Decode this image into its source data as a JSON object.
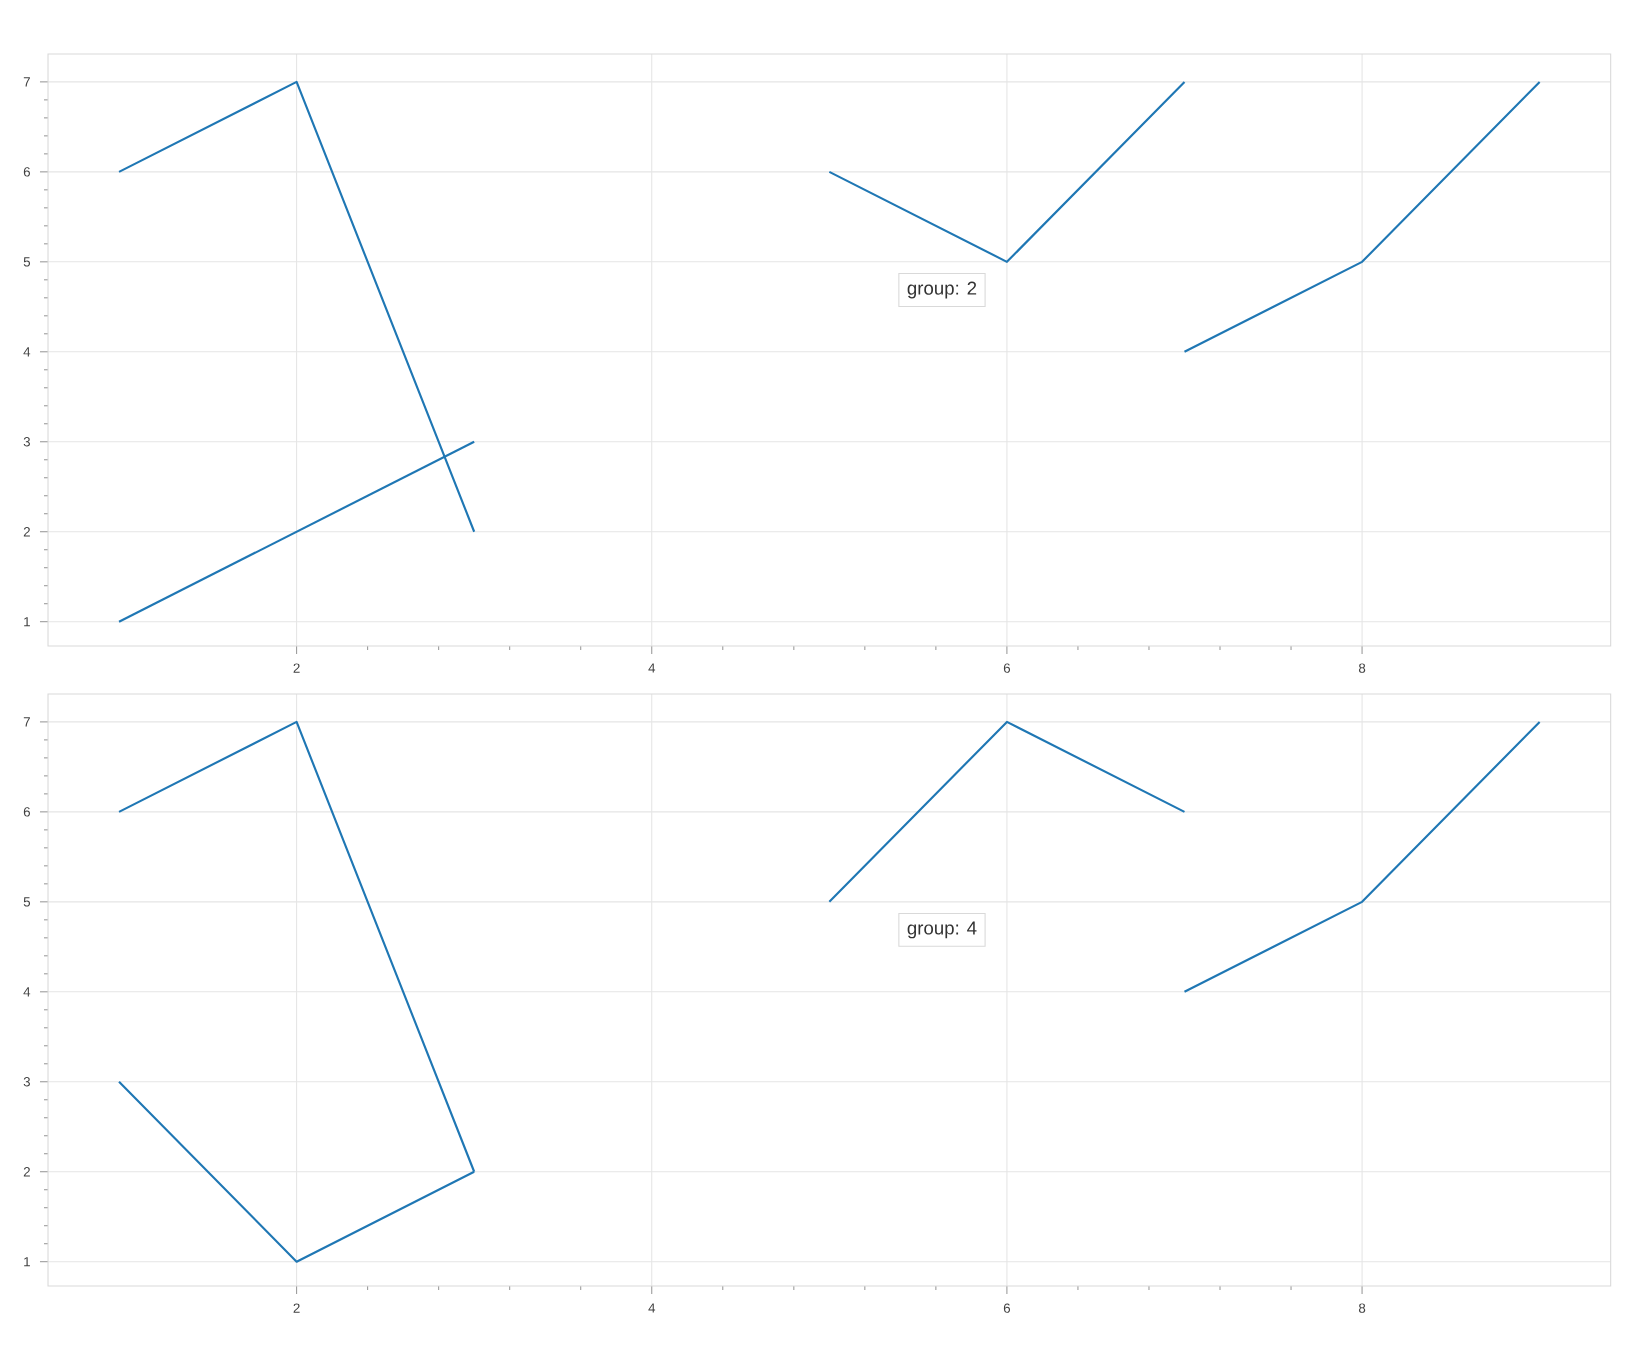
{
  "chart_data": [
    {
      "type": "line",
      "xlim": [
        0.6,
        9.4
      ],
      "ylim": [
        0.73,
        7.31
      ],
      "xticks": [
        2,
        4,
        6,
        8
      ],
      "yticks": [
        1,
        2,
        3,
        4,
        5,
        6,
        7
      ],
      "grid": true,
      "series": [
        {
          "color": "#1f77b4",
          "x": [
            1,
            2,
            3
          ],
          "values": [
            6,
            7,
            2
          ]
        },
        {
          "color": "#1f77b4",
          "x": [
            1,
            2,
            3
          ],
          "values": [
            1,
            2,
            3
          ]
        },
        {
          "color": "#1f77b4",
          "x": [
            5,
            6,
            7
          ],
          "values": [
            6,
            5,
            7
          ]
        },
        {
          "color": "#1f77b4",
          "x": [
            7,
            8,
            9
          ],
          "values": [
            4,
            5,
            7
          ]
        }
      ],
      "annotations": [
        "group: 2"
      ]
    },
    {
      "type": "line",
      "xlim": [
        0.6,
        9.4
      ],
      "ylim": [
        0.73,
        7.31
      ],
      "xticks": [
        2,
        4,
        6,
        8
      ],
      "yticks": [
        1,
        2,
        3,
        4,
        5,
        6,
        7
      ],
      "grid": true,
      "series": [
        {
          "color": "#1f77b4",
          "x": [
            1,
            2,
            3
          ],
          "values": [
            6,
            7,
            2
          ]
        },
        {
          "color": "#1f77b4",
          "x": [
            1,
            2,
            3
          ],
          "values": [
            3,
            1,
            2
          ]
        },
        {
          "color": "#1f77b4",
          "x": [
            5,
            6,
            7
          ],
          "values": [
            5,
            7,
            6
          ]
        },
        {
          "color": "#1f77b4",
          "x": [
            7,
            8,
            9
          ],
          "values": [
            4,
            5,
            7
          ]
        }
      ],
      "annotations": [
        "group: 4"
      ]
    }
  ]
}
